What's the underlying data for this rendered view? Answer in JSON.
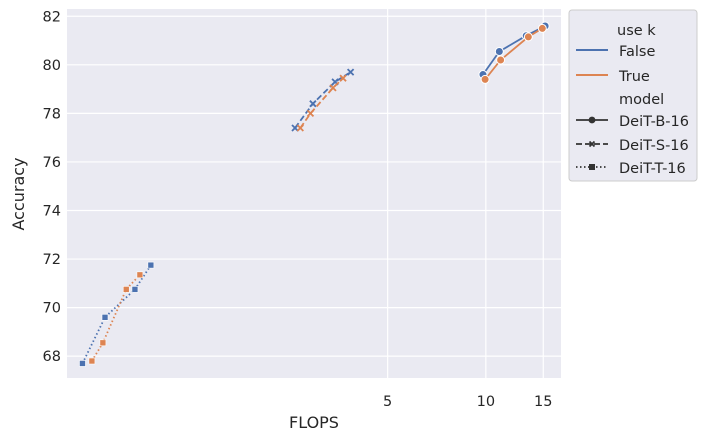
{
  "chart_data": {
    "type": "line",
    "title": "",
    "xlabel": "FLOPS",
    "ylabel": "Accuracy",
    "x_scale": "log",
    "xlim": [
      0.52,
      17.0
    ],
    "ylim": [
      67.1,
      82.3
    ],
    "x_ticks": [
      5,
      10,
      15
    ],
    "x_tick_labels": [
      "5",
      "10",
      "15"
    ],
    "y_ticks": [
      68,
      70,
      72,
      74,
      76,
      78,
      80,
      82
    ],
    "y_tick_labels": [
      "68",
      "70",
      "72",
      "74",
      "76",
      "78",
      "80",
      "82"
    ],
    "grid": true,
    "background": "#eaeaf2",
    "grid_color": "#ffffff",
    "legend": {
      "position": "outside-right",
      "hue_title": "use k",
      "hue_entries": [
        {
          "label": "False",
          "color": "#4c72b0"
        },
        {
          "label": "True",
          "color": "#dd8452"
        }
      ],
      "style_title": "model",
      "style_entries": [
        {
          "label": "DeiT-B-16",
          "marker": "circle",
          "dash": "solid"
        },
        {
          "label": "DeiT-S-16",
          "marker": "x",
          "dash": "dashed"
        },
        {
          "label": "DeiT-T-16",
          "marker": "square",
          "dash": "dotted"
        }
      ]
    },
    "series": [
      {
        "use_k": "False",
        "model": "DeiT-B-16",
        "color": "#4c72b0",
        "marker": "circle",
        "dash": "solid",
        "x": [
          9.8,
          11.0,
          13.3,
          15.2
        ],
        "y": [
          79.6,
          80.55,
          81.2,
          81.6
        ]
      },
      {
        "use_k": "True",
        "model": "DeiT-B-16",
        "color": "#dd8452",
        "marker": "circle",
        "dash": "solid",
        "x": [
          9.95,
          11.1,
          13.5,
          14.9
        ],
        "y": [
          79.4,
          80.2,
          81.15,
          81.5
        ]
      },
      {
        "use_k": "False",
        "model": "DeiT-S-16",
        "color": "#4c72b0",
        "marker": "x",
        "dash": "dashed",
        "x": [
          2.6,
          2.95,
          3.45,
          3.85
        ],
        "y": [
          77.4,
          78.4,
          79.3,
          79.7
        ]
      },
      {
        "use_k": "True",
        "model": "DeiT-S-16",
        "color": "#dd8452",
        "marker": "x",
        "dash": "dashed",
        "x": [
          2.7,
          2.9,
          3.4,
          3.65
        ],
        "y": [
          77.4,
          78.0,
          79.05,
          79.45
        ]
      },
      {
        "use_k": "False",
        "model": "DeiT-T-16",
        "color": "#4c72b0",
        "marker": "square",
        "dash": "dotted",
        "x": [
          0.58,
          0.68,
          0.84,
          0.94
        ],
        "y": [
          67.7,
          69.6,
          70.75,
          71.75
        ]
      },
      {
        "use_k": "True",
        "model": "DeiT-T-16",
        "color": "#dd8452",
        "marker": "square",
        "dash": "dotted",
        "x": [
          0.62,
          0.67,
          0.79,
          0.87
        ],
        "y": [
          67.8,
          68.55,
          70.75,
          71.35
        ]
      }
    ]
  }
}
